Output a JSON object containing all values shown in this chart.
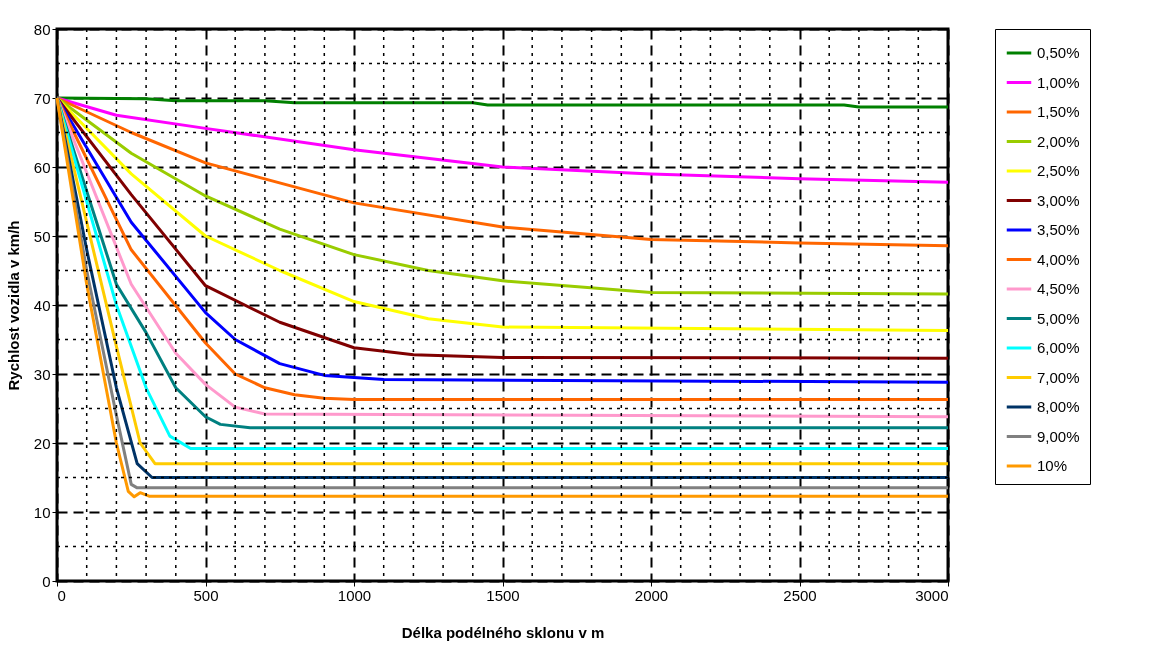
{
  "chart_data": {
    "type": "line",
    "xlabel": "Délka podélného sklonu v m",
    "ylabel": "Rychlost vozidla v km/h",
    "xlim": [
      0,
      3000
    ],
    "ylim": [
      0,
      80
    ],
    "xticks": [
      0,
      500,
      1000,
      1500,
      2000,
      2500,
      3000
    ],
    "yticks": [
      0,
      10,
      20,
      30,
      40,
      50,
      60,
      70,
      80
    ],
    "grid": true,
    "legend": "right",
    "marker": "none",
    "line_style": "solid",
    "series": [
      {
        "name": "0,50%",
        "color": "#008000",
        "x": [
          0,
          300,
          400,
          700,
          800,
          1400,
          1450,
          2650,
          2700,
          3000
        ],
        "values": [
          70,
          69.9,
          69.6,
          69.6,
          69.3,
          69.3,
          69,
          69,
          68.7,
          68.7
        ]
      },
      {
        "name": "1,00%",
        "color": "#ff00ff",
        "x": [
          0,
          200,
          500,
          1000,
          1500,
          2000,
          2500,
          3000
        ],
        "values": [
          70,
          67.5,
          65.6,
          62.5,
          60,
          59,
          58.3,
          57.8
        ]
      },
      {
        "name": "1,50%",
        "color": "#ff6600",
        "x": [
          0,
          250,
          500,
          1000,
          1500,
          2000,
          2500,
          3000
        ],
        "values": [
          70,
          65,
          60.6,
          54.8,
          51.3,
          49.5,
          49,
          48.6
        ]
      },
      {
        "name": "2,00%",
        "color": "#99cc00",
        "x": [
          0,
          250,
          500,
          750,
          1000,
          1250,
          1500,
          2000,
          3000
        ],
        "values": [
          70,
          62,
          55.8,
          51,
          47.3,
          45,
          43.5,
          41.8,
          41.6
        ]
      },
      {
        "name": "2,50%",
        "color": "#ffff00",
        "x": [
          0,
          250,
          500,
          750,
          1000,
          1250,
          1500,
          3000
        ],
        "values": [
          70,
          59,
          50,
          45,
          40.5,
          38,
          36.8,
          36.3
        ]
      },
      {
        "name": "3,00%",
        "color": "#800000",
        "x": [
          0,
          250,
          500,
          750,
          1000,
          1200,
          1500,
          3000
        ],
        "values": [
          70,
          56,
          42.8,
          37.5,
          33.8,
          32.8,
          32.4,
          32.3
        ]
      },
      {
        "name": "3,50%",
        "color": "#0000ff",
        "x": [
          0,
          250,
          500,
          600,
          750,
          900,
          1100,
          3000
        ],
        "values": [
          70,
          52,
          38.9,
          35,
          31.5,
          29.8,
          29.2,
          28.8
        ]
      },
      {
        "name": "4,00%",
        "color": "#ff6600",
        "x": [
          0,
          250,
          500,
          600,
          700,
          800,
          900,
          1000,
          3000
        ],
        "values": [
          70,
          48,
          34.5,
          30,
          28,
          27,
          26.5,
          26.3,
          26.3
        ]
      },
      {
        "name": "4,50%",
        "color": "#ff99cc",
        "x": [
          0,
          250,
          400,
          500,
          600,
          700,
          3000
        ],
        "values": [
          70,
          43,
          33,
          28.5,
          25.2,
          24.2,
          23.8
        ]
      },
      {
        "name": "5,00%",
        "color": "#008080",
        "x": [
          0,
          200,
          300,
          400,
          500,
          550,
          650,
          3000
        ],
        "values": [
          70,
          43,
          36,
          28,
          23.8,
          22.7,
          22.2,
          22.2
        ]
      },
      {
        "name": "6,00%",
        "color": "#00ffff",
        "x": [
          0,
          100,
          200,
          300,
          380,
          450,
          3000
        ],
        "values": [
          70,
          55,
          40,
          28,
          21,
          19.2,
          19.2
        ]
      },
      {
        "name": "7,00%",
        "color": "#ffcc00",
        "x": [
          0,
          100,
          200,
          280,
          330,
          3000
        ],
        "values": [
          70,
          52,
          34,
          20,
          17,
          17
        ]
      },
      {
        "name": "8,00%",
        "color": "#003366",
        "x": [
          0,
          100,
          200,
          270,
          320,
          3000
        ],
        "values": [
          70,
          48,
          28,
          17,
          15,
          15
        ]
      },
      {
        "name": "9,00%",
        "color": "#808080",
        "x": [
          0,
          100,
          200,
          250,
          270,
          3000
        ],
        "values": [
          70,
          45,
          24,
          14,
          13.5,
          13.5
        ]
      },
      {
        "name": "10%",
        "color": "#ff9900",
        "x": [
          0,
          100,
          200,
          240,
          260,
          280,
          310,
          3000
        ],
        "values": [
          70,
          43,
          20,
          13,
          12.2,
          12.8,
          12.3,
          12.3
        ]
      }
    ]
  }
}
